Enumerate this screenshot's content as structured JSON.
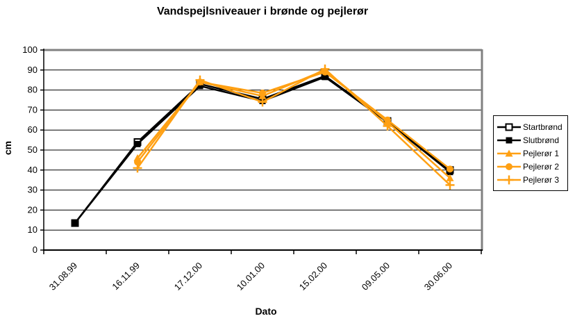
{
  "chart_title": "Vandspejlsniveauer i brønde og pejlerør",
  "colors": {
    "series_black": "#000000",
    "series_orange": "#FFA013",
    "gridline": "#000000",
    "plot_border_gray": "#808080",
    "background": "#FFFFFF",
    "legend_border": "#000000"
  },
  "chart_data": {
    "type": "line",
    "title": "Vandspejlsniveauer i brønde og pejlerør",
    "xlabel": "Dato",
    "ylabel": "cm",
    "ylim": [
      0,
      100
    ],
    "y_tick_step": 10,
    "y_tick_labels": [
      "0",
      "10",
      "20",
      "30",
      "40",
      "50",
      "60",
      "70",
      "80",
      "90",
      "100"
    ],
    "grid": true,
    "legend_position": "right",
    "categories": [
      "31.08.99",
      "16.11.99",
      "17.12.00",
      "10.01.00",
      "15.02.00",
      "09.05.00",
      "30.06.00"
    ],
    "series": [
      {
        "name": "Startbrønd",
        "color": "#000000",
        "marker": "open-square",
        "values": [
          13.5,
          54,
          83,
          75.5,
          87,
          64.5,
          40
        ]
      },
      {
        "name": "Slutbrønd",
        "color": "#000000",
        "marker": "filled-square",
        "values": [
          13.5,
          53,
          82,
          74.5,
          86.5,
          64,
          39
        ]
      },
      {
        "name": "Pejlerør 1",
        "color": "#FFA013",
        "marker": "triangle",
        "values": [
          null,
          46,
          84,
          77,
          90,
          64,
          36
        ]
      },
      {
        "name": "Pejlerør 2",
        "color": "#FFA013",
        "marker": "circle",
        "values": [
          null,
          44,
          84,
          78.5,
          89,
          65,
          40.5
        ]
      },
      {
        "name": "Pejlerør 3",
        "color": "#FFA013",
        "marker": "plus",
        "values": [
          null,
          41,
          85,
          74,
          90.5,
          62,
          32.5
        ]
      }
    ]
  }
}
